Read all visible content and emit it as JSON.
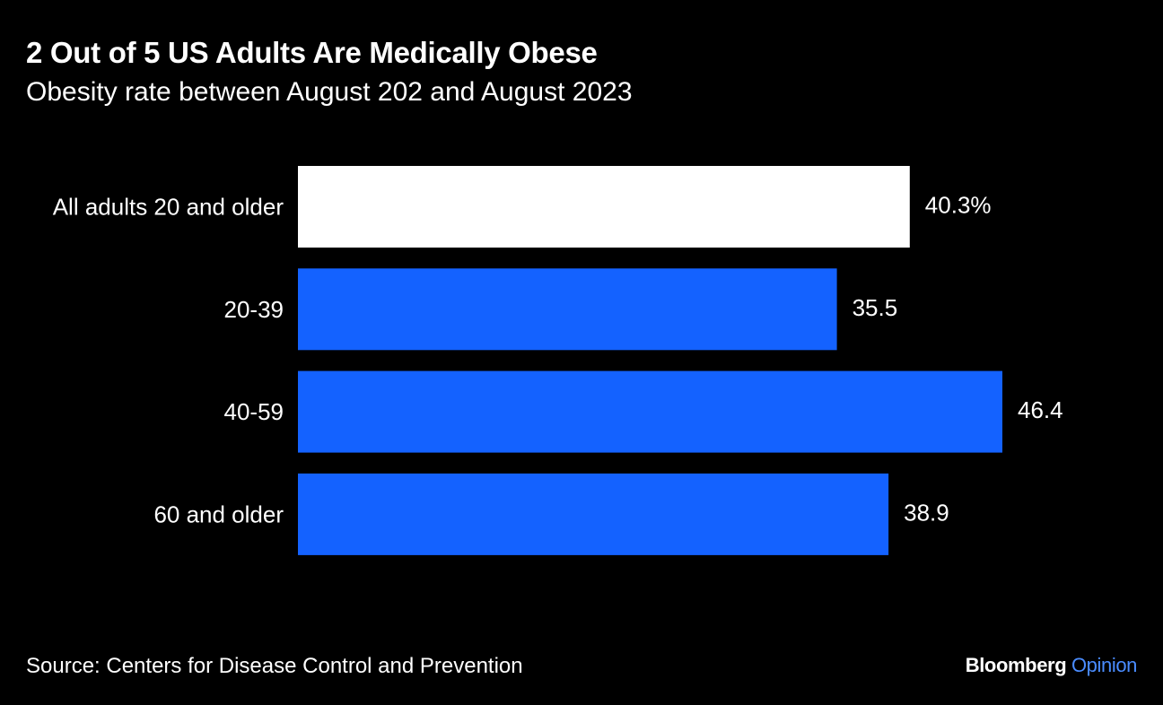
{
  "header": {
    "title": "2 Out of 5 US Adults Are Medically Obese",
    "subtitle": "Obesity rate between August 202 and August 2023"
  },
  "footer": {
    "source": "Source: Centers for Disease Control and Prevention",
    "brand_name": "Bloomberg",
    "brand_suffix": "Opinion",
    "brand_suffix_color": "#4a8cff"
  },
  "chart_data": {
    "type": "bar",
    "orientation": "horizontal",
    "title": "2 Out of 5 US Adults Are Medically Obese",
    "subtitle": "Obesity rate between August 202 and August 2023",
    "categories": [
      "All adults 20 and older",
      "20-39",
      "40-59",
      "60 and older"
    ],
    "values": [
      40.3,
      35.5,
      46.4,
      38.9
    ],
    "value_labels": [
      "40.3%",
      "35.5",
      "46.4",
      "38.9"
    ],
    "bar_colors": [
      "#ffffff",
      "#1462ff",
      "#1462ff",
      "#1462ff"
    ],
    "xlim": [
      0,
      46.4
    ],
    "grid": false,
    "background": "#000000"
  }
}
